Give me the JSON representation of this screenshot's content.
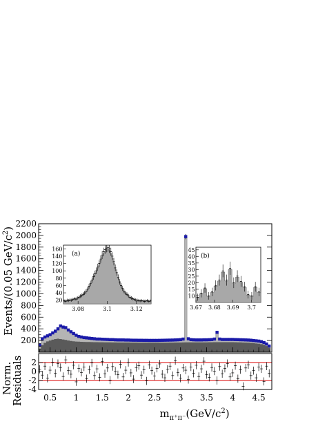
{
  "chart_data": {
    "type": "histogram",
    "main": {
      "ylabel_main": "Events/(0.05 GeV/c",
      "ylabel_sup": "2",
      "ylabel_end": ")",
      "xlabel_base": "m",
      "xlabel_sub": "π⁺π⁻",
      "xlabel_unit": "(GeV/c",
      "xlabel_sup": "2",
      "xlabel_end": ")",
      "xlim": [
        0.28,
        4.75
      ],
      "ylim": [
        0,
        2200
      ],
      "yticks": [
        200,
        400,
        600,
        800,
        1000,
        1200,
        1400,
        1600,
        1800,
        2000,
        2200
      ],
      "ytick_labels": [
        "200",
        "400",
        "600",
        "800",
        "1000",
        "1200",
        "1400",
        "1600",
        "1800",
        "2000",
        "2200"
      ],
      "xticks": [
        0.5,
        1,
        1.5,
        2,
        2.5,
        3,
        3.5,
        4,
        4.5
      ],
      "xtick_labels": [
        "0.5",
        "1",
        "1.5",
        "2",
        "2.5",
        "3",
        "3.5",
        "4",
        "4.5"
      ],
      "bin_width": 0.05,
      "data_points": [
        [
          0.3,
          120
        ],
        [
          0.35,
          230
        ],
        [
          0.4,
          260
        ],
        [
          0.45,
          280
        ],
        [
          0.5,
          300
        ],
        [
          0.55,
          330
        ],
        [
          0.6,
          360
        ],
        [
          0.65,
          400
        ],
        [
          0.7,
          450
        ],
        [
          0.75,
          430
        ],
        [
          0.8,
          420
        ],
        [
          0.85,
          380
        ],
        [
          0.9,
          350
        ],
        [
          0.95,
          320
        ],
        [
          1.0,
          290
        ],
        [
          1.05,
          270
        ],
        [
          1.1,
          260
        ],
        [
          1.15,
          250
        ],
        [
          1.2,
          245
        ],
        [
          1.25,
          240
        ],
        [
          1.3,
          235
        ],
        [
          1.35,
          230
        ],
        [
          1.4,
          225
        ],
        [
          1.45,
          225
        ],
        [
          1.5,
          222
        ],
        [
          1.55,
          220
        ],
        [
          1.6,
          218
        ],
        [
          1.65,
          215
        ],
        [
          1.7,
          215
        ],
        [
          1.75,
          212
        ],
        [
          1.8,
          210
        ],
        [
          1.85,
          210
        ],
        [
          1.9,
          210
        ],
        [
          1.95,
          208
        ],
        [
          2.0,
          208
        ],
        [
          2.05,
          206
        ],
        [
          2.1,
          205
        ],
        [
          2.15,
          205
        ],
        [
          2.2,
          204
        ],
        [
          2.25,
          204
        ],
        [
          2.3,
          203
        ],
        [
          2.35,
          203
        ],
        [
          2.4,
          202
        ],
        [
          2.45,
          202
        ],
        [
          2.5,
          202
        ],
        [
          2.55,
          202
        ],
        [
          2.6,
          203
        ],
        [
          2.65,
          204
        ],
        [
          2.7,
          205
        ],
        [
          2.75,
          206
        ],
        [
          2.8,
          207
        ],
        [
          2.85,
          208
        ],
        [
          2.9,
          210
        ],
        [
          2.95,
          212
        ],
        [
          3.0,
          215
        ],
        [
          3.05,
          225
        ],
        [
          3.1,
          1980
        ],
        [
          3.15,
          230
        ],
        [
          3.2,
          215
        ],
        [
          3.25,
          212
        ],
        [
          3.3,
          210
        ],
        [
          3.35,
          210
        ],
        [
          3.4,
          210
        ],
        [
          3.45,
          212
        ],
        [
          3.5,
          212
        ],
        [
          3.55,
          214
        ],
        [
          3.6,
          216
        ],
        [
          3.65,
          225
        ],
        [
          3.7,
          340
        ],
        [
          3.75,
          225
        ],
        [
          3.8,
          218
        ],
        [
          3.85,
          218
        ],
        [
          3.9,
          218
        ],
        [
          3.95,
          218
        ],
        [
          4.0,
          218
        ],
        [
          4.05,
          216
        ],
        [
          4.1,
          215
        ],
        [
          4.15,
          213
        ],
        [
          4.2,
          212
        ],
        [
          4.25,
          210
        ],
        [
          4.3,
          208
        ],
        [
          4.35,
          205
        ],
        [
          4.4,
          200
        ],
        [
          4.45,
          195
        ],
        [
          4.5,
          190
        ],
        [
          4.55,
          180
        ],
        [
          4.6,
          165
        ],
        [
          4.65,
          140
        ],
        [
          4.7,
          105
        ]
      ],
      "fit_total": [
        [
          0.3,
          110
        ],
        [
          0.35,
          215
        ],
        [
          0.4,
          250
        ],
        [
          0.45,
          272
        ],
        [
          0.5,
          293
        ],
        [
          0.55,
          320
        ],
        [
          0.6,
          350
        ],
        [
          0.65,
          385
        ],
        [
          0.7,
          420
        ],
        [
          0.75,
          415
        ],
        [
          0.8,
          405
        ],
        [
          0.85,
          368
        ],
        [
          0.9,
          340
        ],
        [
          0.95,
          312
        ],
        [
          1.0,
          286
        ],
        [
          1.05,
          268
        ],
        [
          1.1,
          256
        ],
        [
          1.15,
          248
        ],
        [
          1.2,
          242
        ],
        [
          1.25,
          237
        ],
        [
          1.3,
          232
        ],
        [
          1.35,
          228
        ],
        [
          1.4,
          224
        ],
        [
          1.45,
          222
        ],
        [
          1.5,
          220
        ],
        [
          1.55,
          218
        ],
        [
          1.6,
          216
        ],
        [
          1.65,
          214
        ],
        [
          1.7,
          213
        ],
        [
          1.75,
          211
        ],
        [
          1.8,
          210
        ],
        [
          1.85,
          209
        ],
        [
          1.9,
          208
        ],
        [
          1.95,
          207
        ],
        [
          2.0,
          206
        ],
        [
          2.05,
          205
        ],
        [
          2.1,
          204
        ],
        [
          2.15,
          204
        ],
        [
          2.2,
          203
        ],
        [
          2.25,
          203
        ],
        [
          2.3,
          202
        ],
        [
          2.35,
          202
        ],
        [
          2.4,
          201
        ],
        [
          2.45,
          201
        ],
        [
          2.5,
          201
        ],
        [
          2.55,
          201
        ],
        [
          2.6,
          202
        ],
        [
          2.65,
          203
        ],
        [
          2.7,
          204
        ],
        [
          2.75,
          205
        ],
        [
          2.8,
          206
        ],
        [
          2.85,
          207
        ],
        [
          2.9,
          209
        ],
        [
          2.95,
          211
        ],
        [
          3.0,
          214
        ],
        [
          3.05,
          222
        ],
        [
          3.1,
          1975
        ],
        [
          3.15,
          228
        ],
        [
          3.2,
          214
        ],
        [
          3.25,
          211
        ],
        [
          3.3,
          209
        ],
        [
          3.35,
          209
        ],
        [
          3.4,
          209
        ],
        [
          3.45,
          210
        ],
        [
          3.5,
          211
        ],
        [
          3.55,
          213
        ],
        [
          3.6,
          215
        ],
        [
          3.65,
          222
        ],
        [
          3.7,
          335
        ],
        [
          3.75,
          223
        ],
        [
          3.8,
          217
        ],
        [
          3.85,
          217
        ],
        [
          3.9,
          217
        ],
        [
          3.95,
          217
        ],
        [
          4.0,
          216
        ],
        [
          4.05,
          215
        ],
        [
          4.1,
          214
        ],
        [
          4.15,
          212
        ],
        [
          4.2,
          210
        ],
        [
          4.25,
          208
        ],
        [
          4.3,
          206
        ],
        [
          4.35,
          203
        ],
        [
          4.4,
          198
        ],
        [
          4.45,
          193
        ],
        [
          4.5,
          187
        ],
        [
          4.55,
          177
        ],
        [
          4.6,
          162
        ],
        [
          4.65,
          138
        ],
        [
          4.7,
          102
        ]
      ],
      "background_dark": [
        [
          0.3,
          60
        ],
        [
          0.35,
          120
        ],
        [
          0.4,
          160
        ],
        [
          0.45,
          185
        ],
        [
          0.5,
          200
        ],
        [
          0.55,
          215
        ],
        [
          0.6,
          225
        ],
        [
          0.65,
          230
        ],
        [
          0.7,
          225
        ],
        [
          0.75,
          218
        ],
        [
          0.8,
          210
        ],
        [
          0.85,
          200
        ],
        [
          0.9,
          192
        ],
        [
          0.95,
          186
        ],
        [
          1.0,
          182
        ],
        [
          1.05,
          180
        ],
        [
          1.1,
          178
        ],
        [
          1.15,
          176
        ],
        [
          1.2,
          175
        ],
        [
          1.25,
          174
        ],
        [
          1.3,
          173
        ],
        [
          1.35,
          172
        ],
        [
          1.4,
          171
        ],
        [
          1.45,
          170
        ],
        [
          1.5,
          170
        ],
        [
          1.55,
          169
        ],
        [
          1.6,
          168
        ],
        [
          1.65,
          168
        ],
        [
          1.7,
          167
        ],
        [
          1.75,
          167
        ],
        [
          1.8,
          166
        ],
        [
          1.85,
          166
        ],
        [
          1.9,
          165
        ],
        [
          1.95,
          165
        ],
        [
          2.0,
          165
        ],
        [
          2.05,
          164
        ],
        [
          2.1,
          164
        ],
        [
          2.15,
          164
        ],
        [
          2.2,
          163
        ],
        [
          2.25,
          163
        ],
        [
          2.3,
          163
        ],
        [
          2.35,
          162
        ],
        [
          2.4,
          162
        ],
        [
          2.45,
          162
        ],
        [
          2.5,
          162
        ],
        [
          2.55,
          162
        ],
        [
          2.6,
          162
        ],
        [
          2.65,
          163
        ],
        [
          2.7,
          163
        ],
        [
          2.75,
          163
        ],
        [
          2.8,
          164
        ],
        [
          2.85,
          164
        ],
        [
          2.9,
          165
        ],
        [
          2.95,
          165
        ],
        [
          3.0,
          166
        ],
        [
          3.05,
          167
        ],
        [
          3.1,
          168
        ],
        [
          3.15,
          168
        ],
        [
          3.2,
          168
        ],
        [
          3.25,
          168
        ],
        [
          3.3,
          168
        ],
        [
          3.35,
          168
        ],
        [
          3.4,
          168
        ],
        [
          3.45,
          169
        ],
        [
          3.5,
          169
        ],
        [
          3.55,
          170
        ],
        [
          3.6,
          170
        ],
        [
          3.65,
          171
        ],
        [
          3.7,
          172
        ],
        [
          3.75,
          172
        ],
        [
          3.8,
          172
        ],
        [
          3.85,
          172
        ],
        [
          3.9,
          172
        ],
        [
          3.95,
          172
        ],
        [
          4.0,
          171
        ],
        [
          4.05,
          170
        ],
        [
          4.1,
          169
        ],
        [
          4.15,
          168
        ],
        [
          4.2,
          166
        ],
        [
          4.25,
          164
        ],
        [
          4.3,
          162
        ],
        [
          4.35,
          159
        ],
        [
          4.4,
          155
        ],
        [
          4.45,
          150
        ],
        [
          4.5,
          145
        ],
        [
          4.55,
          137
        ],
        [
          4.6,
          125
        ],
        [
          4.65,
          105
        ],
        [
          4.7,
          75
        ]
      ],
      "colors": {
        "data": "#1a1aa8",
        "light_fill": "#b4b4b4",
        "dark_fill": "#5a5a5a"
      }
    },
    "residuals": {
      "ylabel_1": "Norm.",
      "ylabel_2": "Residuals",
      "ylim": [
        -4,
        4
      ],
      "yticks": [
        -4,
        -2,
        0,
        2
      ],
      "ytick_labels": [
        "-4",
        "-2",
        "0",
        "2"
      ],
      "red_lines": [
        -2,
        2
      ],
      "values": [
        0.5,
        -0.8,
        1.2,
        -1.5,
        0.3,
        2.1,
        -0.4,
        1.8,
        0.9,
        -1.1,
        2.6,
        0.2,
        -0.6,
        1.4,
        -2.3,
        0.7,
        -0.2,
        1.0,
        -1.6,
        0.4,
        1.9,
        -0.9,
        0.6,
        -1.3,
        2.2,
        -0.5,
        0.8,
        -1.9,
        1.1,
        0.1,
        -0.7,
        1.6,
        -1.2,
        0.3,
        2.0,
        -0.3,
        -1.7,
        0.9,
        1.3,
        -0.8,
        0.4,
        -2.1,
        1.5,
        0.2,
        -1.0,
        0.7,
        1.7,
        -0.6,
        -1.4,
        0.5,
        1.2,
        -0.9,
        2.4,
        -0.2,
        -1.5,
        0.8,
        0.3,
        -1.8,
        1.0,
        -0.4,
        1.4,
        -1.1,
        0.6,
        2.3,
        -0.7,
        -1.3,
        0.9,
        0.1,
        -2.0,
        1.1,
        -0.5,
        0.7,
        1.8,
        -1.2,
        -0.3,
        1.3,
        -1.6,
        0.4,
        -3.3,
        0.8,
        1.5,
        -0.9,
        0.2,
        -1.4,
        1.0,
        0.6,
        -2.2,
        1.2,
        -0.4
      ]
    },
    "inset_a": {
      "label": "(a)",
      "xlim": [
        3.07,
        3.13
      ],
      "ylim": [
        10,
        170
      ],
      "yticks": [
        20,
        40,
        60,
        80,
        100,
        120,
        140,
        160
      ],
      "ytick_labels": [
        "20",
        "40",
        "60",
        "80",
        "100",
        "120",
        "140",
        "160"
      ],
      "xticks": [
        3.08,
        3.1,
        3.12
      ],
      "xtick_labels": [
        "3.08",
        "3.1",
        "3.12"
      ],
      "bin_width": 0.002,
      "values": [
        18,
        17,
        20,
        19,
        21,
        20,
        22,
        24,
        23,
        26,
        28,
        31,
        33,
        36,
        40,
        44,
        50,
        58,
        66,
        75,
        84,
        92,
        100,
        110,
        120,
        132,
        143,
        152,
        158,
        162,
        163,
        160,
        152,
        140,
        125,
        108,
        95,
        82,
        70,
        60,
        52,
        45,
        40,
        36,
        32,
        28,
        26,
        24,
        22,
        21,
        20,
        19,
        18,
        19,
        18,
        17,
        18,
        19,
        17,
        18
      ]
    },
    "inset_b": {
      "label": "(b)",
      "xlim": [
        3.67,
        3.705
      ],
      "ylim": [
        5,
        47
      ],
      "yticks": [
        10,
        15,
        20,
        25,
        30,
        35,
        40,
        45
      ],
      "ytick_labels": [
        "10",
        "15",
        "20",
        "25",
        "30",
        "35",
        "40",
        "45"
      ],
      "xticks": [
        3.67,
        3.68,
        3.69,
        3.7
      ],
      "xtick_labels": [
        "3.67",
        "3.68",
        "3.69",
        "3.7"
      ],
      "bin_width": 0.002,
      "values": [
        9,
        12,
        16,
        10,
        13,
        18,
        22,
        29,
        22,
        31,
        20,
        25,
        21,
        17,
        11,
        10,
        17,
        13
      ]
    }
  }
}
